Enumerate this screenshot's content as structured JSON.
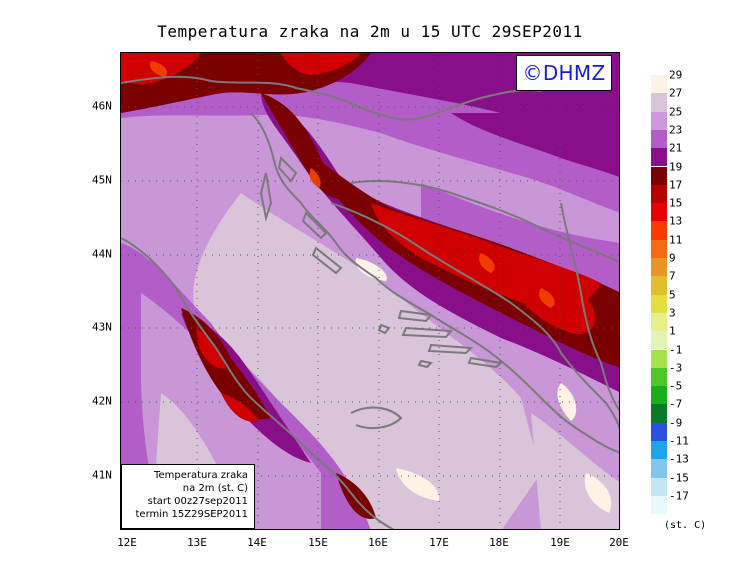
{
  "title": "Temperatura zraka na 2m u 15 UTC 29SEP2011",
  "logo": "©DHMZ",
  "infobox": {
    "line1": "Temperatura zraka",
    "line2": "na 2m (st. C)",
    "line3": "start 00z27sep2011",
    "line4": "termin 15Z29SEP2011"
  },
  "axes": {
    "x_labels": [
      "12E",
      "13E",
      "14E",
      "15E",
      "16E",
      "17E",
      "18E",
      "19E",
      "20E"
    ],
    "y_labels": [
      "46N",
      "45N",
      "44N",
      "43N",
      "42N",
      "41N"
    ]
  },
  "legend": {
    "units": "(st. C)",
    "labels": [
      "29",
      "27",
      "25",
      "23",
      "21",
      "19",
      "17",
      "15",
      "13",
      "11",
      "9",
      "7",
      "5",
      "3",
      "1",
      "-1",
      "-3",
      "-5",
      "-7",
      "-9",
      "-11",
      "-13",
      "-15",
      "-17"
    ],
    "colors": [
      "#fdf3e4",
      "#d8c4d6",
      "#cc99dd",
      "#b25dc8",
      "#880e8a",
      "#7a0000",
      "#b80000",
      "#e60000",
      "#fa3a00",
      "#f66a16",
      "#ea9425",
      "#e2bd2c",
      "#e4df3c",
      "#e8ee8a",
      "#e2f3b8",
      "#a8e050",
      "#4cc628",
      "#1aae1a",
      "#0a7a2a",
      "#2a52e0",
      "#1ea4e8",
      "#80c6ee",
      "#c4e6f2",
      "#e6f8fa"
    ]
  },
  "map_colors": {
    "base": "#c996d8",
    "warm": "#d9c4da",
    "hot": "#fdf3e4",
    "mid": "#b25dc8",
    "dark": "#880e8a",
    "maroon": "#7a0000",
    "red": "#d10000",
    "bright": "#f03c00",
    "coast": "#7a7a7a",
    "grid": "#555555"
  }
}
